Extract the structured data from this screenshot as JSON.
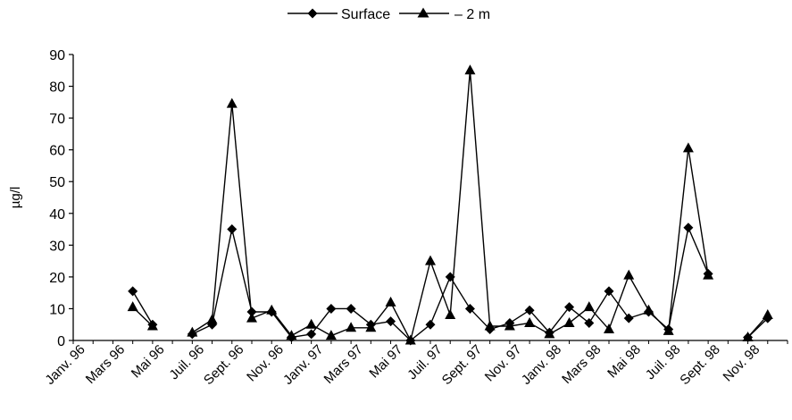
{
  "chart_data": {
    "type": "line",
    "title": "",
    "xlabel": "",
    "ylabel": "µg/l",
    "ylim": [
      0,
      90
    ],
    "yticks": [
      0,
      10,
      20,
      30,
      40,
      50,
      60,
      70,
      80,
      90
    ],
    "grid": false,
    "legend_position": "top-center",
    "x_tick_labels": [
      "Janv. 96",
      "Mars 96",
      "Mai 96",
      "Juil. 96",
      "Sept. 96",
      "Nov. 96",
      "Janv. 97",
      "Mars 97",
      "Mai 97",
      "Juil. 97",
      "Sept. 97",
      "Nov. 97",
      "Janv. 98",
      "Mars 98",
      "Mai 98",
      "Juil. 98",
      "Sept. 98",
      "Nov. 98"
    ],
    "series": [
      {
        "name": "Surface",
        "marker": "diamond",
        "color": "#000000",
        "segments": [
          [
            [
              "Mars 96",
              15.5
            ],
            [
              "Avr. 96",
              5
            ]
          ],
          [
            [
              "Juin 96",
              2
            ],
            [
              "Juil. 96",
              5
            ],
            [
              "Août 96",
              35
            ],
            [
              "Sept. 96",
              9
            ],
            [
              "Oct. 96",
              9
            ],
            [
              "Nov. 96",
              1
            ],
            [
              "Déc. 96",
              2
            ],
            [
              "Janv. 97",
              10
            ],
            [
              "Févr. 97",
              10
            ],
            [
              "Mars 97",
              5
            ],
            [
              "Avr. 97",
              6
            ],
            [
              "Mai 97",
              0
            ],
            [
              "Juin 97",
              5
            ],
            [
              "Juil. 97",
              20
            ],
            [
              "Août 97",
              10
            ],
            [
              "Sept. 97",
              3.5
            ],
            [
              "Oct. 97",
              5.5
            ],
            [
              "Nov. 97",
              9.5
            ],
            [
              "Déc. 97",
              2.5
            ],
            [
              "Janv. 98",
              10.5
            ],
            [
              "Févr. 98",
              5.5
            ],
            [
              "Mars 98",
              15.5
            ],
            [
              "Avr. 98",
              7
            ],
            [
              "Mai 98",
              9
            ],
            [
              "Juin 98",
              3.5
            ],
            [
              "Juil. 98",
              35.5
            ],
            [
              "Août 98",
              21
            ]
          ],
          [
            [
              "Oct. 98",
              1
            ],
            [
              "Nov. 98",
              7
            ]
          ]
        ]
      },
      {
        "name": "– 2 m",
        "marker": "triangle",
        "color": "#000000",
        "segments": [
          [
            [
              "Mars 96",
              10.5
            ],
            [
              "Avr. 96",
              4.5
            ]
          ],
          [
            [
              "Juin 96",
              2.5
            ],
            [
              "Juil. 96",
              6.5
            ],
            [
              "Août 96",
              74.5
            ],
            [
              "Sept. 96",
              7
            ],
            [
              "Oct. 96",
              9.5
            ],
            [
              "Nov. 96",
              1.5
            ],
            [
              "Déc. 96",
              5
            ],
            [
              "Janv. 97",
              1.5
            ],
            [
              "Févr. 97",
              4
            ],
            [
              "Mars 97",
              4
            ],
            [
              "Avr. 97",
              12
            ],
            [
              "Mai 97",
              0
            ],
            [
              "Juin 97",
              25
            ],
            [
              "Juil. 97",
              8
            ],
            [
              "Août 97",
              85
            ],
            [
              "Sept. 97",
              4.5
            ],
            [
              "Oct. 97",
              4.5
            ],
            [
              "Nov. 97",
              5.5
            ],
            [
              "Déc. 97",
              2
            ],
            [
              "Janv. 98",
              5.5
            ],
            [
              "Févr. 98",
              10.5
            ],
            [
              "Mars 98",
              3.5
            ],
            [
              "Avr. 98",
              20.5
            ],
            [
              "Mai 98",
              9.5
            ],
            [
              "Juin 98",
              3
            ],
            [
              "Juil. 98",
              60.5
            ],
            [
              "Août 98",
              20.5
            ]
          ],
          [
            [
              "Oct. 98",
              1
            ],
            [
              "Nov. 98",
              8
            ]
          ]
        ]
      }
    ]
  }
}
